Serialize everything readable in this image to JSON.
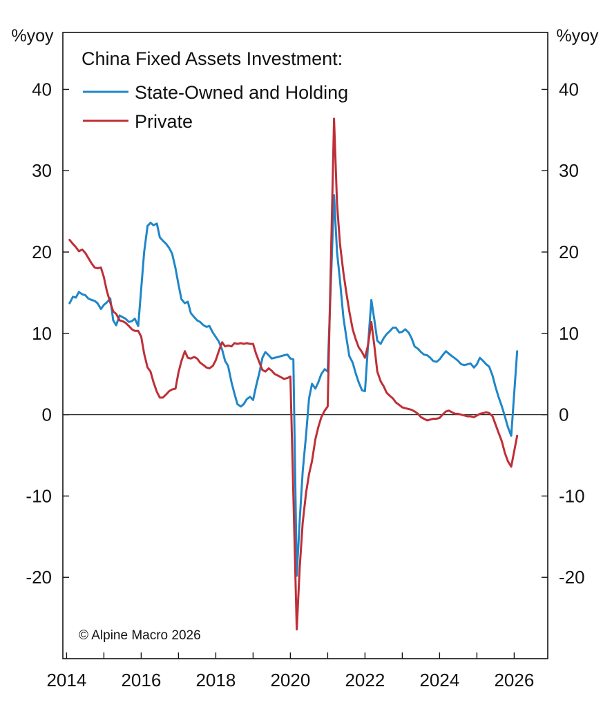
{
  "chart_data": {
    "type": "line",
    "title": "China Fixed Assets Investment:",
    "ylabel_left": "%yoy",
    "ylabel_right": "%yoy",
    "ylim": [
      -30,
      47
    ],
    "xlim": [
      2013.9,
      2026.9
    ],
    "yticks": [
      -20,
      -10,
      0,
      10,
      20,
      30,
      40
    ],
    "xticks": [
      "2014",
      "2016",
      "2018",
      "2020",
      "2022",
      "2024",
      "2026"
    ],
    "zero_line": true,
    "grid": false,
    "legend_position": "top-left",
    "credit": "© Alpine Macro 2026",
    "series": [
      {
        "name": "State-Owned and Holding",
        "color": "#1f86c8",
        "points": [
          [
            2014.08,
            13.7
          ],
          [
            2014.17,
            14.5
          ],
          [
            2014.25,
            14.4
          ],
          [
            2014.33,
            15.1
          ],
          [
            2014.42,
            14.8
          ],
          [
            2014.5,
            14.7
          ],
          [
            2014.58,
            14.3
          ],
          [
            2014.67,
            14.1
          ],
          [
            2014.75,
            14.0
          ],
          [
            2014.83,
            13.7
          ],
          [
            2014.92,
            13.0
          ],
          [
            2015.0,
            13.5
          ],
          [
            2015.08,
            13.8
          ],
          [
            2015.17,
            14.3
          ],
          [
            2015.25,
            11.6
          ],
          [
            2015.33,
            11.0
          ],
          [
            2015.42,
            12.2
          ],
          [
            2015.5,
            12.0
          ],
          [
            2015.58,
            11.8
          ],
          [
            2015.67,
            11.4
          ],
          [
            2015.75,
            11.5
          ],
          [
            2015.83,
            11.8
          ],
          [
            2015.92,
            10.9
          ],
          [
            2016.08,
            20.0
          ],
          [
            2016.17,
            23.2
          ],
          [
            2016.25,
            23.6
          ],
          [
            2016.33,
            23.3
          ],
          [
            2016.42,
            23.5
          ],
          [
            2016.5,
            21.8
          ],
          [
            2016.58,
            21.4
          ],
          [
            2016.67,
            21.0
          ],
          [
            2016.75,
            20.5
          ],
          [
            2016.83,
            19.8
          ],
          [
            2016.92,
            18.0
          ],
          [
            2017.0,
            16.0
          ],
          [
            2017.08,
            14.2
          ],
          [
            2017.17,
            13.7
          ],
          [
            2017.25,
            13.9
          ],
          [
            2017.33,
            12.5
          ],
          [
            2017.42,
            12.0
          ],
          [
            2017.5,
            11.6
          ],
          [
            2017.58,
            11.4
          ],
          [
            2017.67,
            11.0
          ],
          [
            2017.75,
            10.8
          ],
          [
            2017.83,
            10.9
          ],
          [
            2017.92,
            10.1
          ],
          [
            2018.08,
            9.0
          ],
          [
            2018.17,
            8.0
          ],
          [
            2018.25,
            6.6
          ],
          [
            2018.33,
            6.0
          ],
          [
            2018.42,
            4.0
          ],
          [
            2018.5,
            2.6
          ],
          [
            2018.58,
            1.3
          ],
          [
            2018.67,
            1.0
          ],
          [
            2018.75,
            1.3
          ],
          [
            2018.83,
            1.9
          ],
          [
            2018.92,
            2.2
          ],
          [
            2019.0,
            1.8
          ],
          [
            2019.08,
            3.5
          ],
          [
            2019.17,
            5.2
          ],
          [
            2019.25,
            7.0
          ],
          [
            2019.33,
            7.7
          ],
          [
            2019.42,
            7.3
          ],
          [
            2019.5,
            6.9
          ],
          [
            2019.58,
            7.0
          ],
          [
            2019.67,
            7.1
          ],
          [
            2019.75,
            7.2
          ],
          [
            2019.83,
            7.3
          ],
          [
            2019.92,
            7.4
          ],
          [
            2020.0,
            6.9
          ],
          [
            2020.08,
            6.8
          ],
          [
            2020.17,
            -19.8
          ],
          [
            2020.25,
            -13.0
          ],
          [
            2020.33,
            -7.0
          ],
          [
            2020.42,
            -2.5
          ],
          [
            2020.5,
            2.0
          ],
          [
            2020.58,
            3.8
          ],
          [
            2020.67,
            3.2
          ],
          [
            2020.75,
            4.0
          ],
          [
            2020.83,
            5.0
          ],
          [
            2020.92,
            5.6
          ],
          [
            2021.0,
            5.3
          ],
          [
            2021.17,
            27.0
          ],
          [
            2021.25,
            20.0
          ],
          [
            2021.33,
            16.5
          ],
          [
            2021.42,
            12.0
          ],
          [
            2021.5,
            9.5
          ],
          [
            2021.58,
            7.2
          ],
          [
            2021.67,
            6.4
          ],
          [
            2021.75,
            5.1
          ],
          [
            2021.83,
            4.0
          ],
          [
            2021.92,
            3.0
          ],
          [
            2022.0,
            2.9
          ],
          [
            2022.08,
            8.4
          ],
          [
            2022.17,
            14.1
          ],
          [
            2022.25,
            11.7
          ],
          [
            2022.33,
            9.1
          ],
          [
            2022.42,
            8.7
          ],
          [
            2022.5,
            9.4
          ],
          [
            2022.58,
            9.9
          ],
          [
            2022.67,
            10.3
          ],
          [
            2022.75,
            10.7
          ],
          [
            2022.83,
            10.7
          ],
          [
            2022.92,
            10.1
          ],
          [
            2023.0,
            10.2
          ],
          [
            2023.08,
            10.5
          ],
          [
            2023.17,
            10.1
          ],
          [
            2023.25,
            9.4
          ],
          [
            2023.33,
            8.4
          ],
          [
            2023.42,
            8.1
          ],
          [
            2023.5,
            7.7
          ],
          [
            2023.58,
            7.4
          ],
          [
            2023.67,
            7.3
          ],
          [
            2023.75,
            7.0
          ],
          [
            2023.83,
            6.6
          ],
          [
            2023.92,
            6.5
          ],
          [
            2024.0,
            6.8
          ],
          [
            2024.08,
            7.3
          ],
          [
            2024.17,
            7.8
          ],
          [
            2024.25,
            7.5
          ],
          [
            2024.33,
            7.2
          ],
          [
            2024.42,
            6.9
          ],
          [
            2024.5,
            6.6
          ],
          [
            2024.58,
            6.2
          ],
          [
            2024.67,
            6.1
          ],
          [
            2024.75,
            6.2
          ],
          [
            2024.83,
            6.3
          ],
          [
            2024.92,
            5.8
          ],
          [
            2025.0,
            6.2
          ],
          [
            2025.08,
            7.0
          ],
          [
            2025.17,
            6.6
          ],
          [
            2025.25,
            6.2
          ],
          [
            2025.33,
            5.9
          ],
          [
            2025.42,
            4.8
          ],
          [
            2025.5,
            3.4
          ],
          [
            2025.58,
            2.2
          ],
          [
            2025.67,
            1.0
          ],
          [
            2025.75,
            -0.2
          ],
          [
            2025.83,
            -1.5
          ],
          [
            2025.92,
            -2.6
          ],
          [
            2026.08,
            7.8
          ]
        ]
      },
      {
        "name": "Private",
        "color": "#be2f37",
        "points": [
          [
            2014.08,
            21.5
          ],
          [
            2014.17,
            21.0
          ],
          [
            2014.25,
            20.6
          ],
          [
            2014.33,
            20.1
          ],
          [
            2014.42,
            20.3
          ],
          [
            2014.5,
            19.9
          ],
          [
            2014.58,
            19.3
          ],
          [
            2014.67,
            18.6
          ],
          [
            2014.75,
            18.1
          ],
          [
            2014.83,
            18.0
          ],
          [
            2014.92,
            18.1
          ],
          [
            2015.0,
            16.9
          ],
          [
            2015.08,
            15.2
          ],
          [
            2015.17,
            13.8
          ],
          [
            2015.25,
            12.7
          ],
          [
            2015.33,
            12.4
          ],
          [
            2015.42,
            11.6
          ],
          [
            2015.5,
            11.5
          ],
          [
            2015.58,
            11.3
          ],
          [
            2015.67,
            10.9
          ],
          [
            2015.75,
            10.5
          ],
          [
            2015.83,
            10.3
          ],
          [
            2015.92,
            10.3
          ],
          [
            2016.0,
            9.6
          ],
          [
            2016.08,
            7.5
          ],
          [
            2016.17,
            5.8
          ],
          [
            2016.25,
            5.3
          ],
          [
            2016.33,
            4.0
          ],
          [
            2016.42,
            2.8
          ],
          [
            2016.5,
            2.1
          ],
          [
            2016.58,
            2.1
          ],
          [
            2016.67,
            2.5
          ],
          [
            2016.75,
            2.9
          ],
          [
            2016.83,
            3.1
          ],
          [
            2016.92,
            3.2
          ],
          [
            2017.0,
            5.2
          ],
          [
            2017.08,
            6.6
          ],
          [
            2017.17,
            7.8
          ],
          [
            2017.25,
            7.0
          ],
          [
            2017.33,
            6.9
          ],
          [
            2017.42,
            7.1
          ],
          [
            2017.5,
            6.9
          ],
          [
            2017.58,
            6.4
          ],
          [
            2017.67,
            6.1
          ],
          [
            2017.75,
            5.8
          ],
          [
            2017.83,
            5.7
          ],
          [
            2017.92,
            6.0
          ],
          [
            2018.0,
            6.7
          ],
          [
            2018.08,
            7.8
          ],
          [
            2018.17,
            8.9
          ],
          [
            2018.25,
            8.4
          ],
          [
            2018.33,
            8.5
          ],
          [
            2018.42,
            8.4
          ],
          [
            2018.5,
            8.8
          ],
          [
            2018.58,
            8.7
          ],
          [
            2018.67,
            8.8
          ],
          [
            2018.75,
            8.7
          ],
          [
            2018.83,
            8.8
          ],
          [
            2018.92,
            8.7
          ],
          [
            2019.0,
            8.7
          ],
          [
            2019.08,
            7.5
          ],
          [
            2019.17,
            6.4
          ],
          [
            2019.25,
            5.5
          ],
          [
            2019.33,
            5.3
          ],
          [
            2019.42,
            5.7
          ],
          [
            2019.5,
            5.4
          ],
          [
            2019.58,
            5.0
          ],
          [
            2019.67,
            4.8
          ],
          [
            2019.75,
            4.6
          ],
          [
            2019.83,
            4.4
          ],
          [
            2019.92,
            4.5
          ],
          [
            2020.0,
            4.7
          ],
          [
            2020.17,
            -26.4
          ],
          [
            2020.25,
            -18.8
          ],
          [
            2020.33,
            -13.3
          ],
          [
            2020.42,
            -9.6
          ],
          [
            2020.5,
            -7.3
          ],
          [
            2020.58,
            -5.7
          ],
          [
            2020.67,
            -3.0
          ],
          [
            2020.75,
            -1.5
          ],
          [
            2020.83,
            -0.3
          ],
          [
            2020.92,
            0.5
          ],
          [
            2021.0,
            1.0
          ],
          [
            2021.17,
            36.4
          ],
          [
            2021.25,
            26.0
          ],
          [
            2021.33,
            21.0
          ],
          [
            2021.42,
            17.5
          ],
          [
            2021.5,
            15.0
          ],
          [
            2021.58,
            12.7
          ],
          [
            2021.67,
            10.5
          ],
          [
            2021.75,
            9.3
          ],
          [
            2021.83,
            8.3
          ],
          [
            2021.92,
            7.7
          ],
          [
            2022.0,
            7.0
          ],
          [
            2022.08,
            8.5
          ],
          [
            2022.17,
            11.4
          ],
          [
            2022.25,
            8.5
          ],
          [
            2022.33,
            5.3
          ],
          [
            2022.42,
            4.1
          ],
          [
            2022.5,
            3.5
          ],
          [
            2022.58,
            2.7
          ],
          [
            2022.67,
            2.3
          ],
          [
            2022.75,
            2.0
          ],
          [
            2022.83,
            1.5
          ],
          [
            2022.92,
            1.2
          ],
          [
            2023.0,
            0.9
          ],
          [
            2023.08,
            0.8
          ],
          [
            2023.17,
            0.7
          ],
          [
            2023.25,
            0.6
          ],
          [
            2023.33,
            0.4
          ],
          [
            2023.42,
            0.1
          ],
          [
            2023.5,
            -0.3
          ],
          [
            2023.58,
            -0.5
          ],
          [
            2023.67,
            -0.7
          ],
          [
            2023.75,
            -0.6
          ],
          [
            2023.83,
            -0.5
          ],
          [
            2023.92,
            -0.5
          ],
          [
            2024.0,
            -0.4
          ],
          [
            2024.08,
            0.0
          ],
          [
            2024.17,
            0.4
          ],
          [
            2024.25,
            0.5
          ],
          [
            2024.33,
            0.3
          ],
          [
            2024.42,
            0.1
          ],
          [
            2024.5,
            0.1
          ],
          [
            2024.58,
            0.0
          ],
          [
            2024.67,
            -0.1
          ],
          [
            2024.75,
            -0.2
          ],
          [
            2024.83,
            -0.2
          ],
          [
            2024.92,
            -0.3
          ],
          [
            2025.0,
            -0.1
          ],
          [
            2025.08,
            0.1
          ],
          [
            2025.17,
            0.2
          ],
          [
            2025.25,
            0.3
          ],
          [
            2025.33,
            0.2
          ],
          [
            2025.42,
            -0.2
          ],
          [
            2025.5,
            -1.2
          ],
          [
            2025.58,
            -2.2
          ],
          [
            2025.67,
            -3.3
          ],
          [
            2025.75,
            -4.7
          ],
          [
            2025.83,
            -5.7
          ],
          [
            2025.92,
            -6.4
          ],
          [
            2026.08,
            -2.6
          ]
        ]
      }
    ]
  }
}
